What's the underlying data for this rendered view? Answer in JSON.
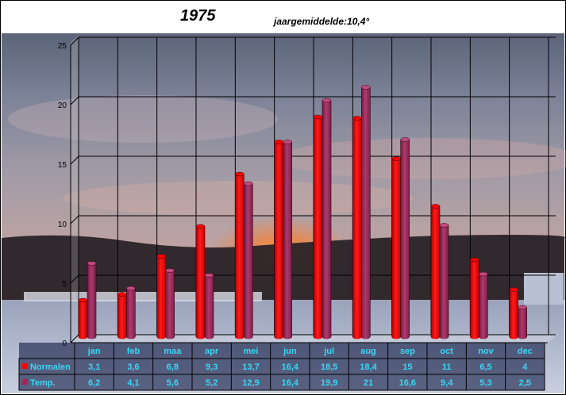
{
  "title": "1975",
  "subtitle": "jaargemiddelde:10,4°",
  "colors": {
    "normalen": "#ff0000",
    "temp": "#a0285a",
    "table_bg": "#000a35",
    "table_text": "#37d8f5"
  },
  "chart_data": {
    "type": "bar",
    "categories": [
      "jan",
      "feb",
      "maa",
      "apr",
      "mei",
      "jun",
      "jul",
      "aug",
      "sep",
      "oct",
      "nov",
      "dec"
    ],
    "series": [
      {
        "name": "Normalen",
        "values": [
          3.1,
          3.6,
          6.8,
          9.3,
          13.7,
          16.4,
          18.5,
          18.4,
          15,
          11,
          6.5,
          4
        ],
        "labels": [
          "3,1",
          "3,6",
          "6,8",
          "9,3",
          "13,7",
          "16,4",
          "18,5",
          "18,4",
          "15",
          "11",
          "6,5",
          "4"
        ]
      },
      {
        "name": "Temp.",
        "values": [
          6.2,
          4.1,
          5.6,
          5.2,
          12.9,
          16.4,
          19.9,
          21,
          16.6,
          9.4,
          5.3,
          2.5
        ],
        "labels": [
          "6,2",
          "4,1",
          "5,6",
          "5,2",
          "12,9",
          "16,4",
          "19,9",
          "21",
          "16,6",
          "9,4",
          "5,3",
          "2,5"
        ]
      }
    ],
    "yticks": [
      "0",
      "5",
      "10",
      "15",
      "20",
      "25"
    ],
    "ylim": [
      0,
      25
    ],
    "grid": true,
    "legend": "data-table"
  }
}
